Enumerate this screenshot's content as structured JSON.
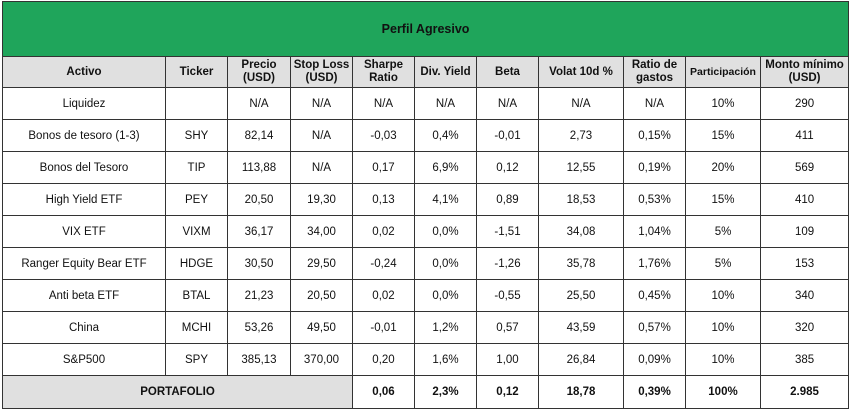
{
  "title": "Perfil Agresivo",
  "columns": [
    {
      "line1": "Activo",
      "line2": ""
    },
    {
      "line1": "Ticker",
      "line2": ""
    },
    {
      "line1": "Precio",
      "line2": "(USD)"
    },
    {
      "line1": "Stop Loss",
      "line2": "(USD)"
    },
    {
      "line1": "Sharpe",
      "line2": "Ratio"
    },
    {
      "line1": "Div. Yield",
      "line2": ""
    },
    {
      "line1": "Beta",
      "line2": ""
    },
    {
      "line1": "Volat 10d %",
      "line2": ""
    },
    {
      "line1": "Ratio de",
      "line2": "gastos"
    },
    {
      "line1": "Participación",
      "line2": ""
    },
    {
      "line1": "Monto mínimo",
      "line2": "(USD)"
    }
  ],
  "rows": [
    [
      "Liquidez",
      "",
      "N/A",
      "N/A",
      "N/A",
      "N/A",
      "N/A",
      "N/A",
      "N/A",
      "10%",
      "290"
    ],
    [
      "Bonos de tesoro (1-3)",
      "SHY",
      "82,14",
      "N/A",
      "-0,03",
      "0,4%",
      "-0,01",
      "2,73",
      "0,15%",
      "15%",
      "411"
    ],
    [
      "Bonos del Tesoro",
      "TIP",
      "113,88",
      "N/A",
      "0,17",
      "6,9%",
      "0,12",
      "12,55",
      "0,19%",
      "20%",
      "569"
    ],
    [
      "High Yield ETF",
      "PEY",
      "20,50",
      "19,30",
      "0,13",
      "4,1%",
      "0,89",
      "18,53",
      "0,53%",
      "15%",
      "410"
    ],
    [
      "VIX ETF",
      "VIXM",
      "36,17",
      "34,00",
      "0,02",
      "0,0%",
      "-1,51",
      "34,08",
      "1,04%",
      "5%",
      "109"
    ],
    [
      "Ranger Equity Bear ETF",
      "HDGE",
      "30,50",
      "29,50",
      "-0,24",
      "0,0%",
      "-1,26",
      "35,78",
      "1,76%",
      "5%",
      "153"
    ],
    [
      "Anti beta ETF",
      "BTAL",
      "21,23",
      "20,50",
      "0,02",
      "0,0%",
      "-0,55",
      "25,50",
      "0,45%",
      "10%",
      "340"
    ],
    [
      "China",
      "MCHI",
      "53,26",
      "49,50",
      "-0,01",
      "1,2%",
      "0,57",
      "43,59",
      "0,57%",
      "10%",
      "320"
    ],
    [
      "S&P500",
      "SPY",
      "385,13",
      "370,00",
      "0,20",
      "1,6%",
      "1,00",
      "26,84",
      "0,09%",
      "10%",
      "385"
    ]
  ],
  "footer": {
    "label": "PORTAFOLIO",
    "values": [
      "0,06",
      "2,3%",
      "0,12",
      "18,78",
      "0,39%",
      "100%",
      "2.985"
    ]
  },
  "colors": {
    "title_bg": "#1fa55b",
    "header_bg": "#e0e0e0",
    "border": "#333333"
  }
}
